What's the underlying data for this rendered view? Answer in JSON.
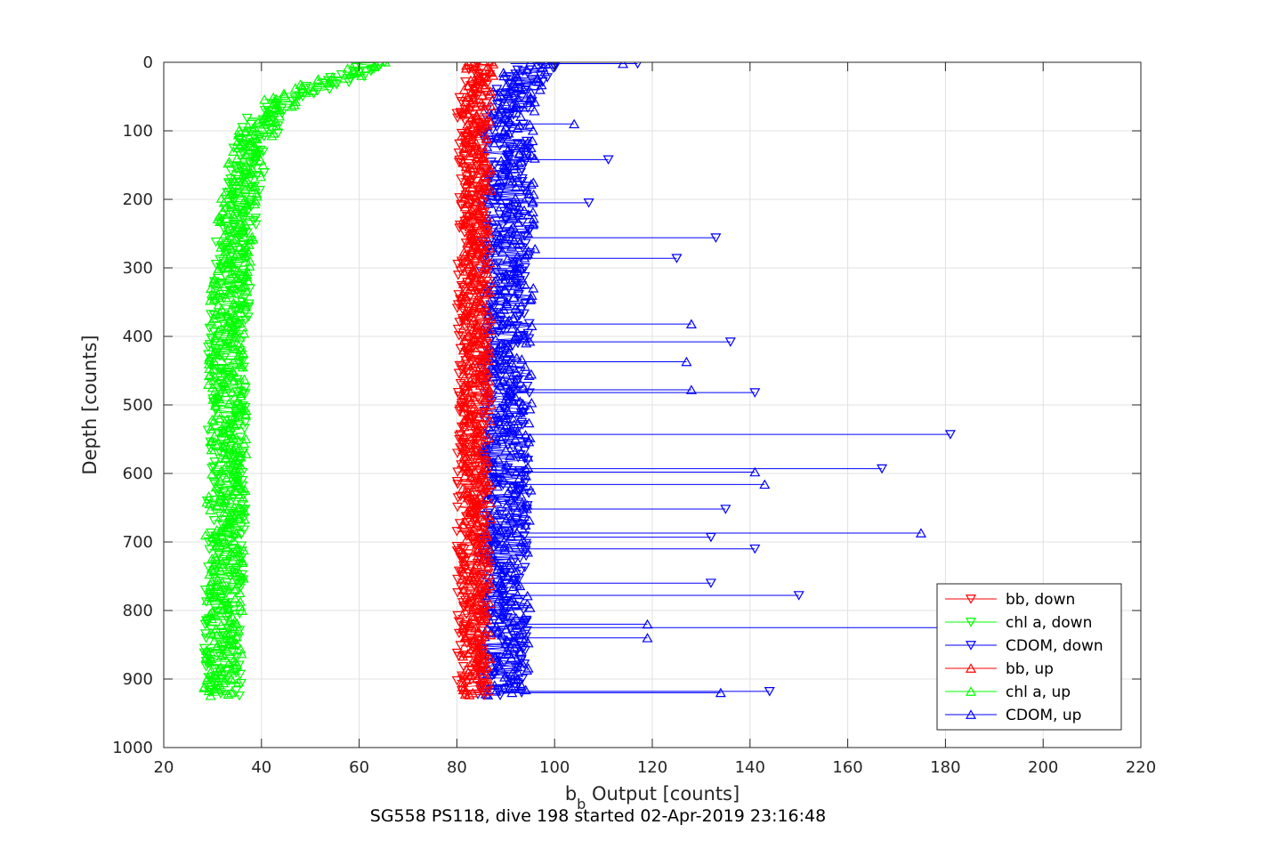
{
  "chart_data": {
    "type": "scatter",
    "xlabel": "b",
    "xlabel_sub": "b",
    "xlabel_rest": " Output [counts]",
    "ylabel": "Depth [counts]",
    "subtitle": "SG558 PS118, dive 198 started 02-Apr-2019 23:16:48",
    "xlim": [
      20,
      220
    ],
    "ylim": [
      0,
      1000
    ],
    "y_reversed": true,
    "grid": true,
    "legend_position": "bottom-right",
    "xticks": [
      "20",
      "40",
      "60",
      "80",
      "100",
      "120",
      "140",
      "160",
      "180",
      "200",
      "220"
    ],
    "yticks": [
      "0",
      "100",
      "200",
      "300",
      "400",
      "500",
      "600",
      "700",
      "800",
      "900",
      "1000"
    ],
    "colors": {
      "bb": "#ff0000",
      "chl": "#00ff00",
      "cdom": "#0000ff"
    },
    "series": [
      {
        "name": "bb, down",
        "color": "#ff0000",
        "marker": "triangle-down",
        "profile": [
          [
            0,
            84.5
          ],
          [
            50,
            83.0
          ],
          [
            100,
            83.0
          ],
          [
            200,
            83.2
          ],
          [
            300,
            83.0
          ],
          [
            400,
            83.0
          ],
          [
            500,
            83.2
          ],
          [
            600,
            83.0
          ],
          [
            700,
            83.0
          ],
          [
            800,
            83.0
          ],
          [
            900,
            83.0
          ],
          [
            925,
            83.0
          ]
        ],
        "spread": 3
      },
      {
        "name": "chl a, down",
        "color": "#00ff00",
        "marker": "triangle-down",
        "profile": [
          [
            0,
            64
          ],
          [
            20,
            58
          ],
          [
            40,
            50
          ],
          [
            60,
            44
          ],
          [
            80,
            41
          ],
          [
            110,
            39
          ],
          [
            150,
            37
          ],
          [
            200,
            36
          ],
          [
            260,
            34.5
          ],
          [
            320,
            34
          ],
          [
            400,
            33
          ],
          [
            500,
            33
          ],
          [
            600,
            33
          ],
          [
            700,
            32.5
          ],
          [
            800,
            32.5
          ],
          [
            900,
            32
          ],
          [
            925,
            32
          ]
        ],
        "spread": 4
      },
      {
        "name": "CDOM, down",
        "color": "#0000ff",
        "marker": "triangle-down",
        "profile": [
          [
            0,
            96
          ],
          [
            50,
            91
          ],
          [
            100,
            90
          ],
          [
            200,
            90
          ],
          [
            300,
            90
          ],
          [
            400,
            90
          ],
          [
            500,
            90
          ],
          [
            600,
            90
          ],
          [
            700,
            89.5
          ],
          [
            800,
            89.5
          ],
          [
            900,
            89
          ],
          [
            925,
            89
          ]
        ],
        "spread": 5
      },
      {
        "name": "bb, up",
        "color": "#ff0000",
        "marker": "triangle-up",
        "profile": [
          [
            0,
            85
          ],
          [
            50,
            84.0
          ],
          [
            100,
            84.0
          ],
          [
            200,
            84.2
          ],
          [
            300,
            84.0
          ],
          [
            400,
            84.0
          ],
          [
            500,
            84.2
          ],
          [
            600,
            84.0
          ],
          [
            700,
            84.0
          ],
          [
            800,
            84.0
          ],
          [
            900,
            84.0
          ],
          [
            925,
            84.0
          ]
        ],
        "spread": 3
      },
      {
        "name": "chl a, up",
        "color": "#00ff00",
        "marker": "triangle-up",
        "profile": [
          [
            0,
            62
          ],
          [
            20,
            57
          ],
          [
            40,
            49
          ],
          [
            60,
            43
          ],
          [
            80,
            40
          ],
          [
            110,
            38.5
          ],
          [
            150,
            37
          ],
          [
            200,
            35.5
          ],
          [
            260,
            34.5
          ],
          [
            320,
            33.5
          ],
          [
            400,
            33
          ],
          [
            500,
            33
          ],
          [
            600,
            32.8
          ],
          [
            700,
            32.5
          ],
          [
            800,
            32.5
          ],
          [
            900,
            32
          ],
          [
            925,
            32
          ]
        ],
        "spread": 4
      },
      {
        "name": "CDOM, up",
        "color": "#0000ff",
        "marker": "triangle-up",
        "profile": [
          [
            0,
            95
          ],
          [
            50,
            91.5
          ],
          [
            100,
            91
          ],
          [
            200,
            91
          ],
          [
            300,
            91
          ],
          [
            400,
            90.5
          ],
          [
            500,
            90.5
          ],
          [
            600,
            90.5
          ],
          [
            700,
            90
          ],
          [
            800,
            90
          ],
          [
            900,
            90
          ],
          [
            925,
            90
          ]
        ],
        "spread": 5
      }
    ],
    "cdom_spikes": [
      {
        "depth": 2,
        "value": 117,
        "dir": "down"
      },
      {
        "depth": 2,
        "value": 114,
        "dir": "up"
      },
      {
        "depth": 90,
        "value": 104,
        "dir": "up"
      },
      {
        "depth": 142,
        "value": 111,
        "dir": "down"
      },
      {
        "depth": 205,
        "value": 107,
        "dir": "down"
      },
      {
        "depth": 256,
        "value": 133,
        "dir": "down"
      },
      {
        "depth": 286,
        "value": 125,
        "dir": "down"
      },
      {
        "depth": 382,
        "value": 128,
        "dir": "up"
      },
      {
        "depth": 408,
        "value": 136,
        "dir": "down"
      },
      {
        "depth": 437,
        "value": 127,
        "dir": "up"
      },
      {
        "depth": 478,
        "value": 128,
        "dir": "up"
      },
      {
        "depth": 482,
        "value": 141,
        "dir": "down"
      },
      {
        "depth": 543,
        "value": 181,
        "dir": "down"
      },
      {
        "depth": 593,
        "value": 167,
        "dir": "down"
      },
      {
        "depth": 598,
        "value": 141,
        "dir": "up"
      },
      {
        "depth": 616,
        "value": 143,
        "dir": "up"
      },
      {
        "depth": 652,
        "value": 135,
        "dir": "down"
      },
      {
        "depth": 687,
        "value": 175,
        "dir": "up"
      },
      {
        "depth": 693,
        "value": 132,
        "dir": "down"
      },
      {
        "depth": 710,
        "value": 141,
        "dir": "down"
      },
      {
        "depth": 760,
        "value": 132,
        "dir": "down"
      },
      {
        "depth": 778,
        "value": 150,
        "dir": "down"
      },
      {
        "depth": 820,
        "value": 119,
        "dir": "up"
      },
      {
        "depth": 825,
        "value": 188,
        "dir": "down"
      },
      {
        "depth": 840,
        "value": 119,
        "dir": "up"
      },
      {
        "depth": 918,
        "value": 144,
        "dir": "down"
      },
      {
        "depth": 920,
        "value": 134,
        "dir": "up"
      }
    ]
  }
}
